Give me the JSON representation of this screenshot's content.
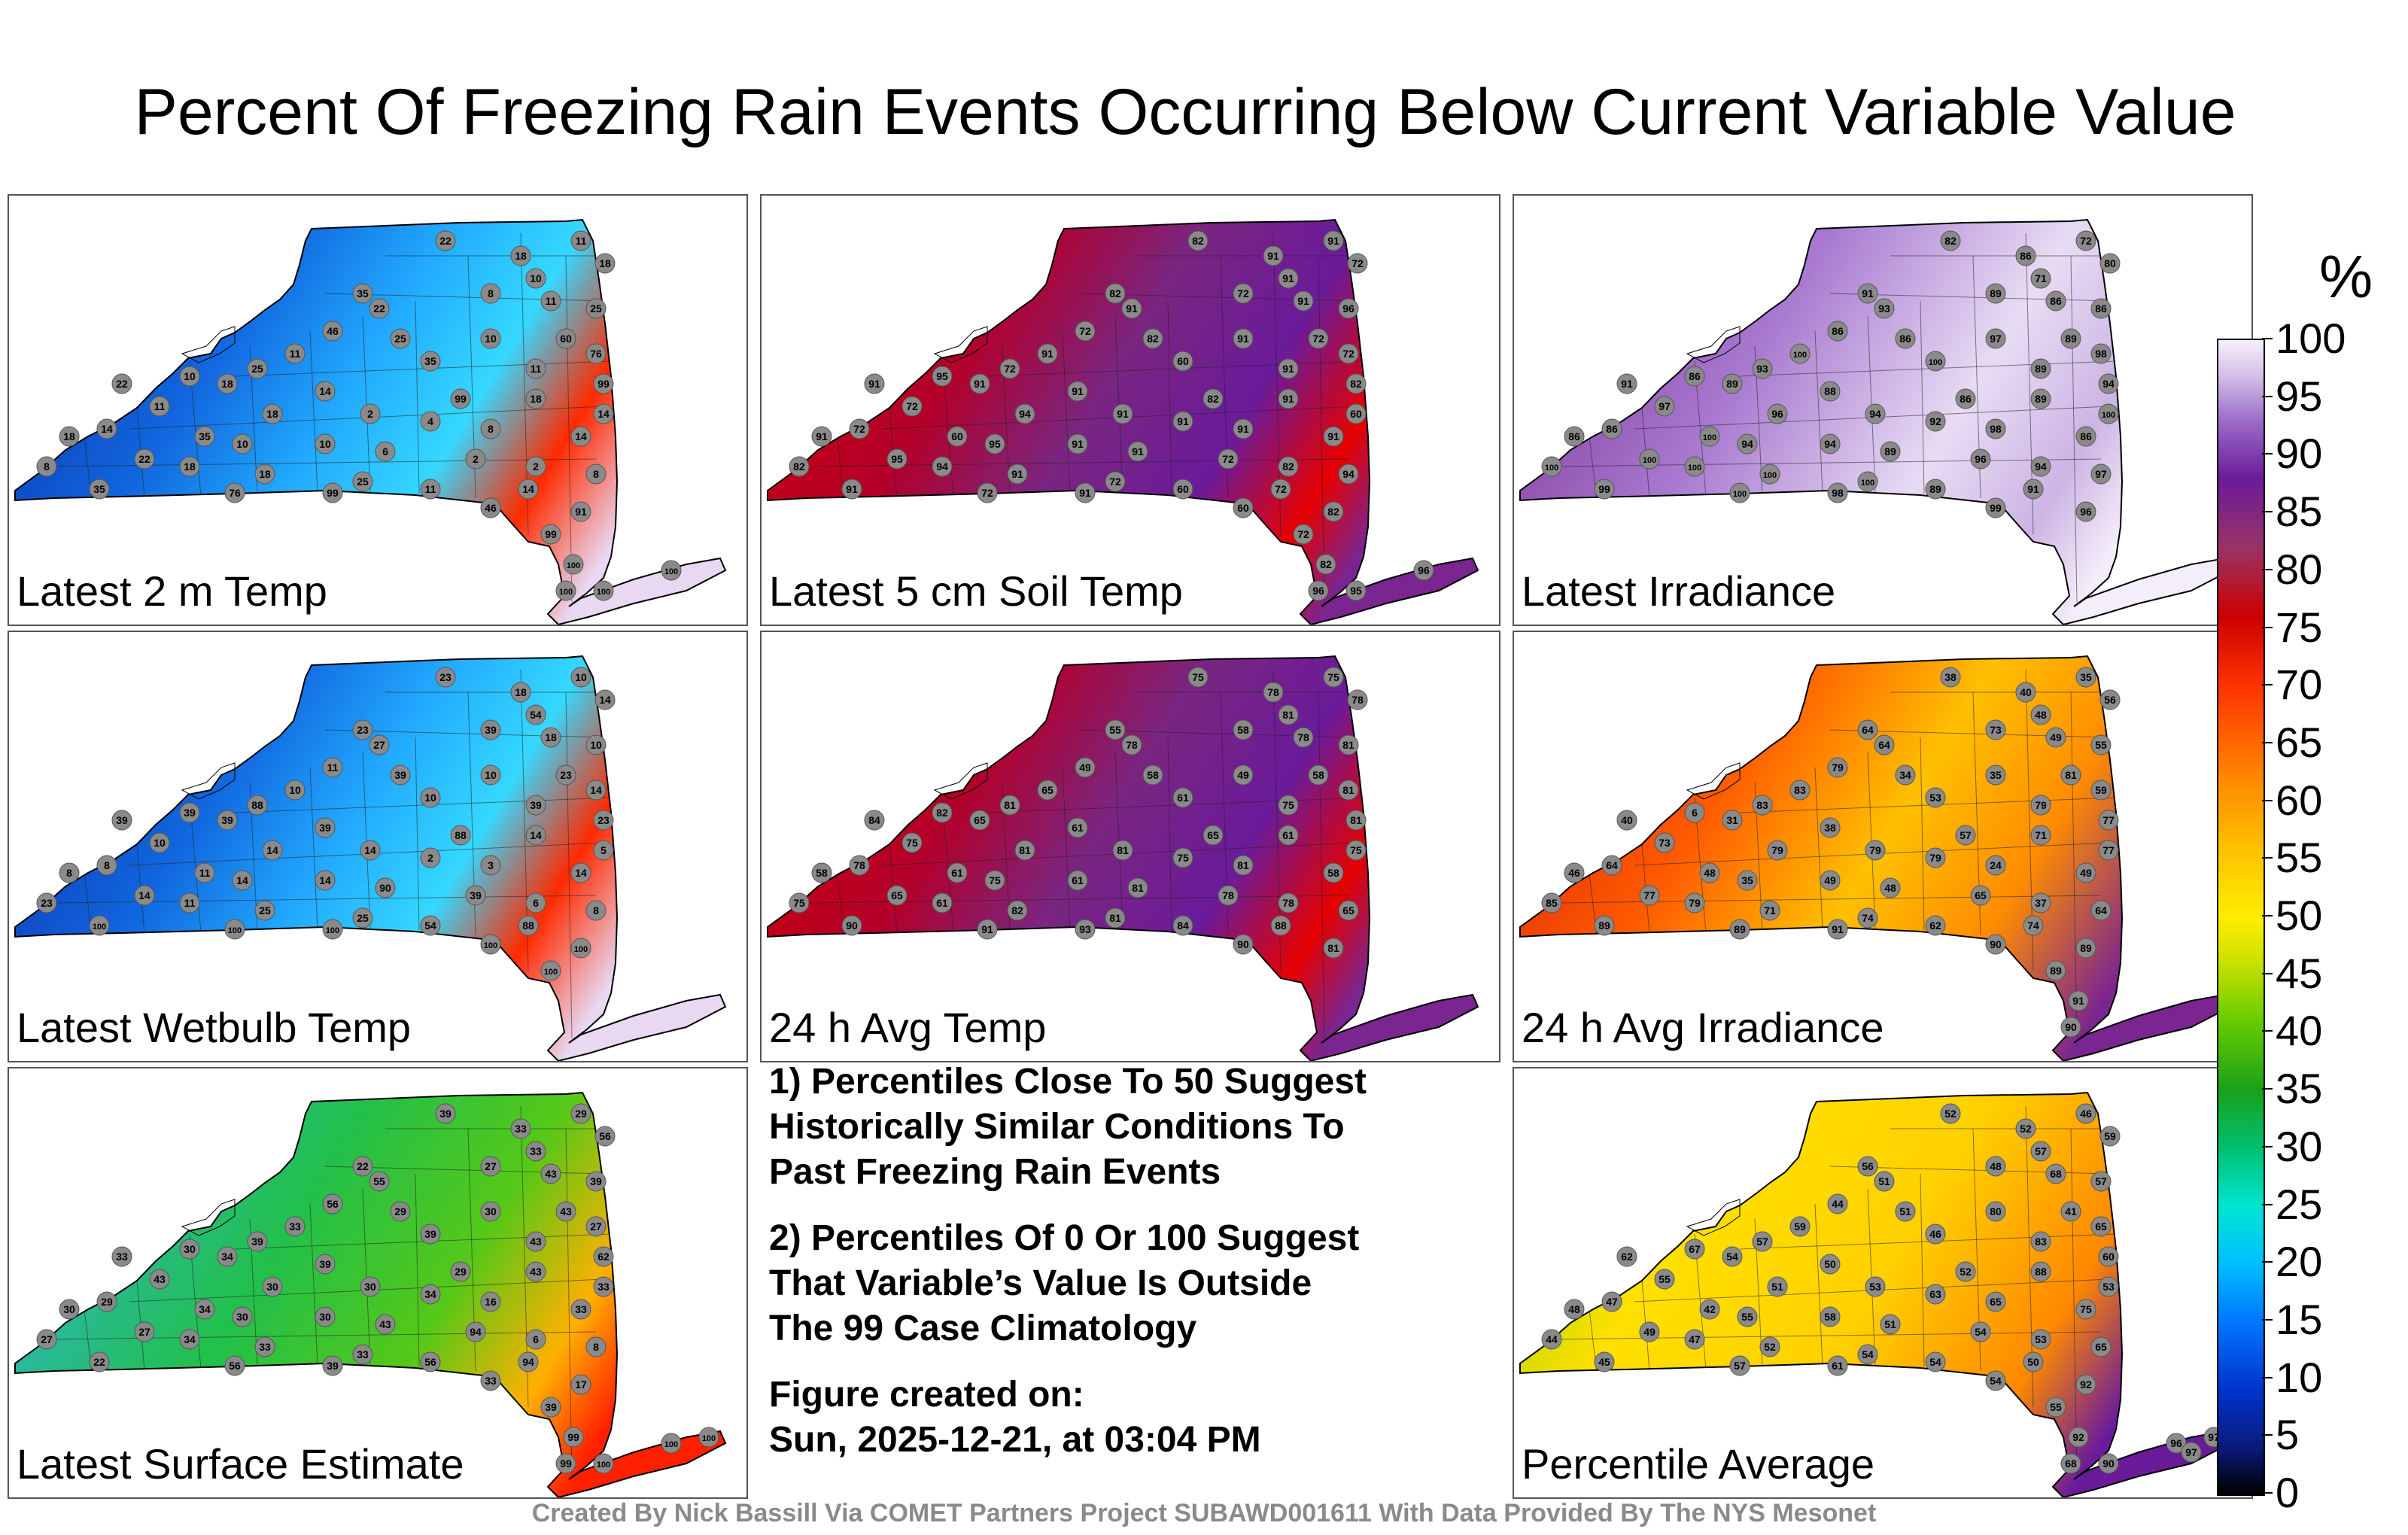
{
  "title": "Percent Of Freezing Rain Events Occurring Below Current Variable Value",
  "colorbar": {
    "unit": "%",
    "ticks": [
      "0",
      "5",
      "10",
      "15",
      "20",
      "25",
      "30",
      "35",
      "40",
      "45",
      "50",
      "55",
      "60",
      "65",
      "70",
      "75",
      "80",
      "85",
      "90",
      "95",
      "100"
    ]
  },
  "panels": [
    {
      "label": "Latest 2 m Temp",
      "scheme": "cold",
      "stations": [
        "22",
        "18",
        "11",
        "18",
        "10",
        "8",
        "35",
        "11",
        "25",
        "22",
        "60",
        "46",
        "25",
        "10",
        "76",
        "11",
        "35",
        "11",
        "25",
        "99",
        "22",
        "10",
        "18",
        "14",
        "99",
        "18",
        "14",
        "11",
        "18",
        "2",
        "4",
        "8",
        "14",
        "18",
        "14",
        "35",
        "10",
        "10",
        "6",
        "2",
        "2",
        "8",
        "8",
        "22",
        "18",
        "18",
        "25",
        "11",
        "14",
        "91",
        "35",
        "76",
        "99",
        "46",
        "99",
        "100",
        "100",
        "100",
        "100"
      ]
    },
    {
      "label": "Latest 5 cm Soil Temp",
      "scheme": "warm",
      "stations": [
        "82",
        "91",
        "91",
        "72",
        "91",
        "72",
        "82",
        "91",
        "96",
        "91",
        "72",
        "72",
        "82",
        "91",
        "72",
        "91",
        "60",
        "91",
        "72",
        "82",
        "91",
        "95",
        "91",
        "91",
        "82",
        "91",
        "60",
        "72",
        "94",
        "91",
        "91",
        "91",
        "91",
        "91",
        "72",
        "60",
        "95",
        "91",
        "91",
        "72",
        "82",
        "94",
        "82",
        "95",
        "94",
        "91",
        "72",
        "60",
        "72",
        "82",
        "91",
        "72",
        "91",
        "60",
        "72",
        "82",
        "96",
        "95",
        "96"
      ]
    },
    {
      "label": "Latest Irradiance",
      "scheme": "purple",
      "stations": [
        "82",
        "86",
        "72",
        "80",
        "71",
        "89",
        "91",
        "86",
        "86",
        "93",
        "89",
        "86",
        "86",
        "97",
        "98",
        "100",
        "100",
        "89",
        "93",
        "94",
        "91",
        "86",
        "89",
        "88",
        "86",
        "89",
        "100",
        "97",
        "96",
        "94",
        "92",
        "98",
        "86",
        "86",
        "86",
        "100",
        "94",
        "94",
        "89",
        "96",
        "94",
        "97",
        "100",
        "100",
        "100",
        "100",
        "100",
        "89",
        "91",
        "96",
        "99",
        "100",
        "98",
        "99"
      ]
    },
    {
      "label": "Latest Wetbulb Temp",
      "scheme": "cold",
      "stations": [
        "23",
        "18",
        "10",
        "14",
        "54",
        "39",
        "23",
        "18",
        "10",
        "27",
        "23",
        "11",
        "39",
        "10",
        "14",
        "10",
        "10",
        "39",
        "88",
        "23",
        "39",
        "39",
        "39",
        "39",
        "88",
        "14",
        "5",
        "10",
        "14",
        "14",
        "2",
        "3",
        "14",
        "8",
        "8",
        "11",
        "14",
        "14",
        "90",
        "39",
        "6",
        "8",
        "23",
        "14",
        "11",
        "25",
        "25",
        "54",
        "88",
        "100",
        "100",
        "100",
        "100",
        "100",
        "100"
      ]
    },
    {
      "label": "24 h Avg Temp",
      "scheme": "warm",
      "stations": [
        "75",
        "78",
        "75",
        "78",
        "81",
        "58",
        "55",
        "78",
        "81",
        "78",
        "58",
        "49",
        "58",
        "49",
        "81",
        "65",
        "61",
        "75",
        "81",
        "81",
        "84",
        "82",
        "65",
        "61",
        "65",
        "61",
        "75",
        "75",
        "81",
        "81",
        "75",
        "81",
        "58",
        "58",
        "78",
        "61",
        "75",
        "61",
        "81",
        "78",
        "78",
        "65",
        "75",
        "65",
        "61",
        "82",
        "81",
        "84",
        "88",
        "81",
        "90",
        "91",
        "93",
        "90"
      ]
    },
    {
      "label": "24 h Avg Irradiance",
      "scheme": "mixed",
      "stations": [
        "38",
        "40",
        "35",
        "56",
        "48",
        "73",
        "64",
        "49",
        "55",
        "64",
        "81",
        "79",
        "34",
        "35",
        "59",
        "83",
        "53",
        "79",
        "83",
        "77",
        "40",
        "6",
        "31",
        "38",
        "57",
        "71",
        "77",
        "73",
        "79",
        "79",
        "79",
        "24",
        "49",
        "46",
        "64",
        "48",
        "35",
        "49",
        "48",
        "65",
        "37",
        "64",
        "85",
        "77",
        "79",
        "71",
        "74",
        "62",
        "74",
        "89",
        "89",
        "89",
        "91",
        "90",
        "89",
        "91",
        "90"
      ]
    },
    {
      "label": "Latest Surface Estimate",
      "scheme": "green",
      "stations": [
        "39",
        "33",
        "29",
        "56",
        "33",
        "27",
        "22",
        "43",
        "39",
        "55",
        "43",
        "56",
        "29",
        "30",
        "27",
        "33",
        "39",
        "43",
        "39",
        "62",
        "33",
        "30",
        "34",
        "39",
        "29",
        "43",
        "33",
        "43",
        "30",
        "30",
        "34",
        "16",
        "33",
        "30",
        "29",
        "34",
        "30",
        "30",
        "43",
        "94",
        "6",
        "8",
        "27",
        "27",
        "34",
        "33",
        "33",
        "56",
        "94",
        "17",
        "22",
        "56",
        "39",
        "33",
        "39",
        "99",
        "99",
        "100",
        "100",
        "100"
      ]
    },
    {
      "label": "Percentile Average",
      "scheme": "mixed2",
      "stations": [
        "52",
        "52",
        "46",
        "59",
        "57",
        "48",
        "56",
        "68",
        "57",
        "51",
        "41",
        "44",
        "51",
        "80",
        "65",
        "59",
        "46",
        "83",
        "57",
        "60",
        "62",
        "67",
        "54",
        "50",
        "52",
        "88",
        "53",
        "55",
        "51",
        "53",
        "63",
        "65",
        "75",
        "48",
        "47",
        "42",
        "55",
        "58",
        "51",
        "54",
        "53",
        "65",
        "44",
        "49",
        "47",
        "52",
        "54",
        "54",
        "50",
        "92",
        "45",
        "57",
        "61",
        "54",
        "55",
        "92",
        "68",
        "90",
        "96",
        "97",
        "97"
      ]
    }
  ],
  "notes": {
    "note1": [
      "1) Percentiles Close To 50 Suggest",
      "Historically Similar Conditions To",
      "Past Freezing Rain Events"
    ],
    "note2": [
      "2) Percentiles Of 0 Or 100 Suggest",
      "That Variable’s Value Is Outside",
      "The 99 Case Climatology"
    ],
    "created": [
      "Figure created on:",
      "Sun, 2025-12-21, at 03:04 PM"
    ]
  },
  "footer": "Created By Nick Bassill Via COMET Partners Project SUBAWD001611 With Data Provided By The NYS Mesonet"
}
